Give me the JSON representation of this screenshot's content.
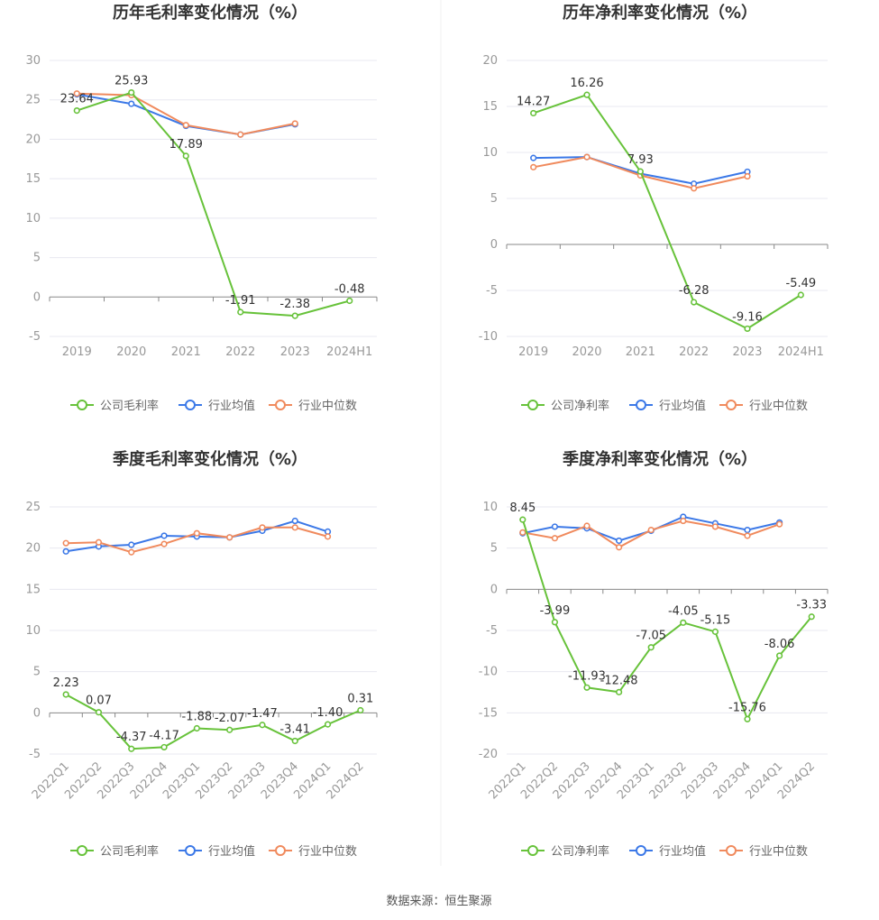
{
  "source_note": "数据来源：恒生聚源",
  "colors": {
    "company": "#67c23a",
    "avg": "#3b78e7",
    "median": "#f08a5d",
    "grid": "#e8e8f0",
    "zero_axis": "#888888"
  },
  "chart_data": [
    {
      "type": "line",
      "title": "历年毛利率变化情况（%）",
      "categories": [
        "2019",
        "2020",
        "2021",
        "2022",
        "2023",
        "2024H1"
      ],
      "ylim": [
        -5,
        30
      ],
      "yticks": [
        30,
        25,
        20,
        15,
        10,
        5,
        0,
        -5
      ],
      "rotate_x_labels": false,
      "series": [
        {
          "name": "公司毛利率",
          "key": "company",
          "values": [
            23.64,
            25.93,
            17.89,
            -1.91,
            -2.38,
            -0.48
          ],
          "labels": [
            "23.64",
            "25.93",
            "17.89",
            "-1.91",
            "-2.38",
            "-0.48"
          ]
        },
        {
          "name": "行业均值",
          "key": "avg",
          "values": [
            25.7,
            24.5,
            21.7,
            20.6,
            21.9,
            null
          ]
        },
        {
          "name": "行业中位数",
          "key": "median",
          "values": [
            25.8,
            25.6,
            21.8,
            20.6,
            22.0,
            null
          ]
        }
      ]
    },
    {
      "type": "line",
      "title": "历年净利率变化情况（%）",
      "categories": [
        "2019",
        "2020",
        "2021",
        "2022",
        "2023",
        "2024H1"
      ],
      "ylim": [
        -10,
        20
      ],
      "yticks": [
        20,
        15,
        10,
        5,
        0,
        -5,
        -10
      ],
      "rotate_x_labels": false,
      "series": [
        {
          "name": "公司净利率",
          "key": "company",
          "values": [
            14.27,
            16.26,
            7.93,
            -6.28,
            -9.16,
            -5.49
          ],
          "labels": [
            "14.27",
            "16.26",
            "7.93",
            "-6.28",
            "-9.16",
            "-5.49"
          ]
        },
        {
          "name": "行业均值",
          "key": "avg",
          "values": [
            9.4,
            9.5,
            7.7,
            6.6,
            7.9,
            null
          ]
        },
        {
          "name": "行业中位数",
          "key": "median",
          "values": [
            8.4,
            9.5,
            7.5,
            6.1,
            7.4,
            null
          ]
        }
      ]
    },
    {
      "type": "line",
      "title": "季度毛利率变化情况（%）",
      "categories": [
        "2022Q1",
        "2022Q2",
        "2022Q3",
        "2022Q4",
        "2023Q1",
        "2023Q2",
        "2023Q3",
        "2023Q4",
        "2024Q1",
        "2024Q2"
      ],
      "ylim": [
        -5,
        25
      ],
      "yticks": [
        25,
        20,
        15,
        10,
        5,
        0,
        -5
      ],
      "rotate_x_labels": true,
      "series": [
        {
          "name": "公司毛利率",
          "key": "company",
          "values": [
            2.23,
            0.07,
            -4.37,
            -4.17,
            -1.88,
            -2.07,
            -1.47,
            -3.41,
            -1.4,
            0.31
          ],
          "labels": [
            "2.23",
            "0.07",
            "-4.37",
            "-4.17",
            "-1.88",
            "-2.07",
            "-1.47",
            "-3.41",
            "-1.40",
            "0.31"
          ]
        },
        {
          "name": "行业均值",
          "key": "avg",
          "values": [
            19.6,
            20.2,
            20.4,
            21.5,
            21.4,
            21.3,
            22.1,
            23.3,
            22.0,
            null
          ]
        },
        {
          "name": "行业中位数",
          "key": "median",
          "values": [
            20.6,
            20.7,
            19.5,
            20.5,
            21.8,
            21.3,
            22.5,
            22.5,
            21.4,
            null
          ]
        }
      ]
    },
    {
      "type": "line",
      "title": "季度净利率变化情况（%）",
      "categories": [
        "2022Q1",
        "2022Q2",
        "2022Q3",
        "2022Q4",
        "2023Q1",
        "2023Q2",
        "2023Q3",
        "2023Q4",
        "2024Q1",
        "2024Q2"
      ],
      "ylim": [
        -20,
        10
      ],
      "yticks": [
        10,
        5,
        0,
        -5,
        -10,
        -15,
        -20
      ],
      "rotate_x_labels": true,
      "series": [
        {
          "name": "公司净利率",
          "key": "company",
          "values": [
            8.45,
            -3.99,
            -11.93,
            -12.48,
            -7.05,
            -4.05,
            -5.15,
            -15.76,
            -8.06,
            -3.33
          ],
          "labels": [
            "8.45",
            "-3.99",
            "-11.93",
            "-12.48",
            "-7.05",
            "-4.05",
            "-5.15",
            "-15.76",
            "-8.06",
            "-3.33"
          ]
        },
        {
          "name": "行业均值",
          "key": "avg",
          "values": [
            6.8,
            7.6,
            7.4,
            5.9,
            7.1,
            8.8,
            8.0,
            7.2,
            8.1,
            null
          ]
        },
        {
          "name": "行业中位数",
          "key": "median",
          "values": [
            6.9,
            6.2,
            7.7,
            5.1,
            7.2,
            8.3,
            7.6,
            6.5,
            7.9,
            null
          ]
        }
      ]
    }
  ]
}
